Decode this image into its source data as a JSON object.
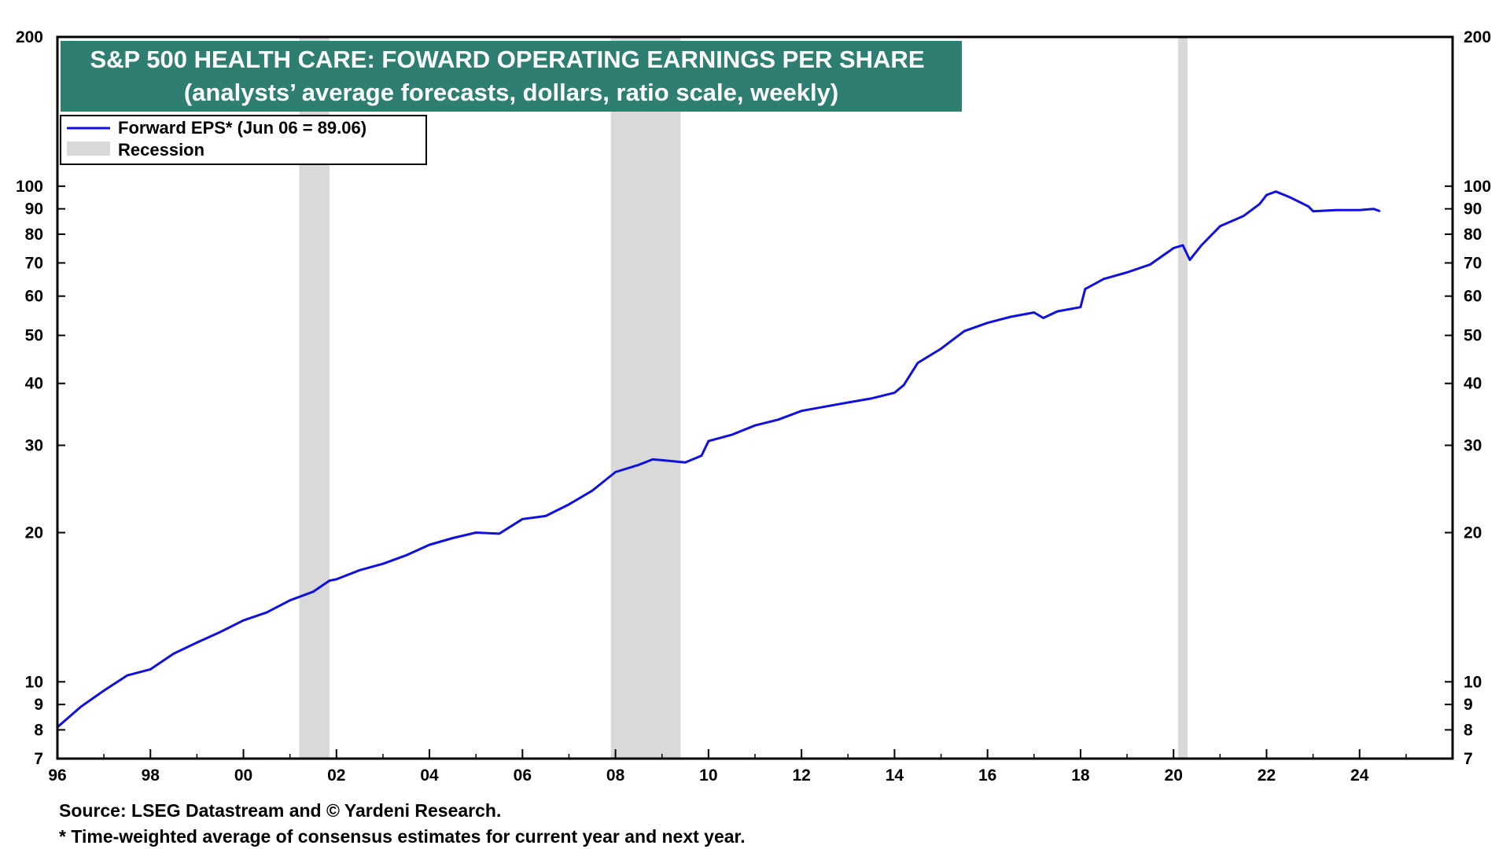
{
  "chart_data": {
    "type": "line",
    "title": "S&P 500 HEALTH CARE: FOWARD OPERATING EARNINGS PER SHARE",
    "subtitle": "(analysts’ average forecasts, dollars, ratio scale, weekly)",
    "scale": "log",
    "ylim": [
      7,
      200
    ],
    "xlim": [
      1996,
      2026
    ],
    "y_ticks": [
      7,
      8,
      9,
      10,
      20,
      30,
      40,
      50,
      60,
      70,
      80,
      90,
      100,
      200
    ],
    "x_ticks": [
      {
        "value": 1996,
        "label": "96"
      },
      {
        "value": 1998,
        "label": "98"
      },
      {
        "value": 2000,
        "label": "00"
      },
      {
        "value": 2002,
        "label": "02"
      },
      {
        "value": 2004,
        "label": "04"
      },
      {
        "value": 2006,
        "label": "06"
      },
      {
        "value": 2008,
        "label": "08"
      },
      {
        "value": 2010,
        "label": "10"
      },
      {
        "value": 2012,
        "label": "12"
      },
      {
        "value": 2014,
        "label": "14"
      },
      {
        "value": 2016,
        "label": "16"
      },
      {
        "value": 2018,
        "label": "18"
      },
      {
        "value": 2020,
        "label": "20"
      },
      {
        "value": 2022,
        "label": "22"
      },
      {
        "value": 2024,
        "label": "24"
      }
    ],
    "legend": [
      {
        "label": "Forward EPS* (Jun 06 = 89.06)",
        "type": "line",
        "color": "#1010e0"
      },
      {
        "label": "Recession",
        "type": "band",
        "color": "#d9d9d9"
      }
    ],
    "legend_position": "top-left",
    "recessions": [
      {
        "start": 2001.2,
        "end": 2001.85
      },
      {
        "start": 2007.9,
        "end": 2009.4
      },
      {
        "start": 2020.1,
        "end": 2020.3
      }
    ],
    "series": [
      {
        "name": "Forward EPS* (Jun 06 = 89.06)",
        "color": "#1010e0",
        "x": [
          1996.0,
          1996.5,
          1997.0,
          1997.5,
          1998.0,
          1998.5,
          1999.0,
          1999.5,
          2000.0,
          2000.5,
          2001.0,
          2001.5,
          2001.85,
          2002.0,
          2002.5,
          2003.0,
          2003.5,
          2004.0,
          2004.5,
          2005.0,
          2005.5,
          2006.0,
          2006.5,
          2007.0,
          2007.5,
          2008.0,
          2008.5,
          2008.8,
          2009.0,
          2009.5,
          2009.85,
          2010.0,
          2010.5,
          2011.0,
          2011.5,
          2012.0,
          2012.5,
          2013.0,
          2013.5,
          2014.0,
          2014.2,
          2014.5,
          2015.0,
          2015.5,
          2016.0,
          2016.5,
          2017.0,
          2017.2,
          2017.5,
          2018.0,
          2018.1,
          2018.5,
          2019.0,
          2019.5,
          2020.0,
          2020.2,
          2020.35,
          2020.6,
          2021.0,
          2021.5,
          2021.85,
          2022.0,
          2022.2,
          2022.5,
          2022.9,
          2023.0,
          2023.5,
          2024.0,
          2024.3,
          2024.43
        ],
        "values": [
          8.1,
          8.9,
          9.6,
          10.3,
          10.6,
          11.4,
          12.0,
          12.6,
          13.3,
          13.8,
          14.6,
          15.2,
          16.0,
          16.1,
          16.8,
          17.3,
          18.0,
          18.9,
          19.5,
          20.0,
          19.9,
          21.3,
          21.6,
          22.8,
          24.3,
          26.5,
          27.4,
          28.1,
          28.0,
          27.7,
          28.6,
          30.6,
          31.5,
          32.9,
          33.8,
          35.2,
          35.9,
          36.6,
          37.3,
          38.3,
          39.7,
          44.0,
          47.0,
          51.0,
          53.0,
          54.5,
          55.6,
          54.2,
          55.9,
          57.0,
          62.0,
          65.0,
          67.0,
          69.5,
          75.0,
          76.0,
          71.0,
          76.0,
          83.0,
          87.0,
          92.0,
          96.0,
          97.5,
          95.0,
          91.0,
          89.0,
          89.5,
          89.5,
          90.0,
          89.06
        ]
      }
    ]
  },
  "footnotes": {
    "source": "Source: LSEG Datastream and © Yardeni Research.",
    "note": "* Time-weighted average of consensus estimates for current year and next year."
  }
}
